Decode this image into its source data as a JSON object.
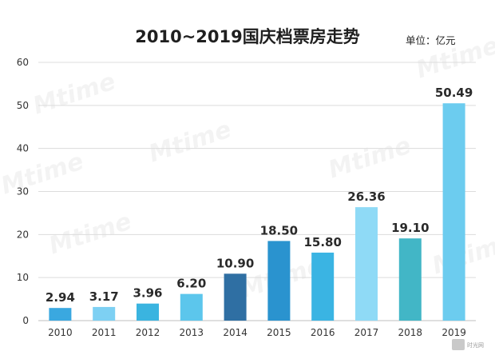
{
  "chart_data": {
    "type": "bar",
    "title": "2010~2019国庆档票房走势",
    "unit_label": "单位：亿元",
    "categories": [
      "2010",
      "2011",
      "2012",
      "2013",
      "2014",
      "2015",
      "2016",
      "2017",
      "2018",
      "2019"
    ],
    "values": [
      2.94,
      3.17,
      3.96,
      6.2,
      10.9,
      18.5,
      15.8,
      26.36,
      19.1,
      50.49
    ],
    "value_labels": [
      "2.94",
      "3.17",
      "3.96",
      "6.20",
      "10.90",
      "18.50",
      "15.80",
      "26.36",
      "19.10",
      "50.49"
    ],
    "bar_colors": [
      "#3aa8e0",
      "#7dd0f3",
      "#3ab4e0",
      "#5cc6ec",
      "#2f6fa3",
      "#2a93cf",
      "#3ab4e3",
      "#8fdaf6",
      "#42b6c6",
      "#6cccef"
    ],
    "ylim": [
      0,
      60
    ],
    "yticks": [
      0,
      10,
      20,
      30,
      40,
      50,
      60
    ],
    "ytick_labels": [
      "0",
      "10",
      "20",
      "30",
      "40",
      "50",
      "60"
    ],
    "grid": true,
    "legend": "none",
    "gridline_color": "#dcdcdc"
  },
  "watermark": {
    "brand": "Mtime",
    "logo_text": "时光网"
  }
}
